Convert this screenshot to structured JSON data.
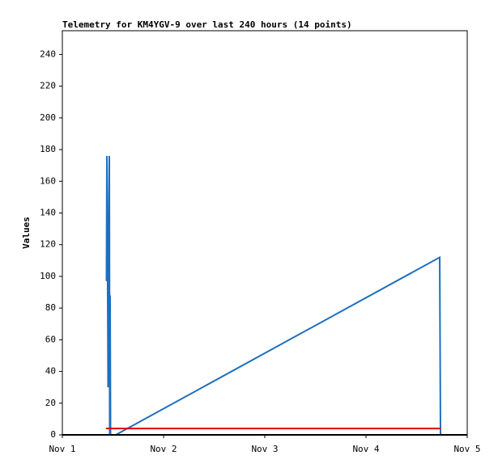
{
  "chart_data": {
    "type": "line",
    "title": "Telemetry for KM4YGV-9 over last 240 hours (14 points)",
    "ylabel": "Values",
    "series": [
      {
        "color": "#1f6fbf",
        "x": [
          0.436,
          0.44,
          0.444,
          0.448,
          0.452,
          0.456,
          0.464,
          0.468,
          0.472,
          0.476,
          0.528,
          3.728,
          3.736,
          3.74
        ],
        "values": [
          97,
          176,
          147,
          88,
          30,
          88,
          176,
          0,
          88,
          0,
          0,
          112,
          0,
          0
        ]
      },
      {
        "color": "#e00000",
        "x": [
          0.43,
          3.74
        ],
        "values": [
          4,
          4
        ]
      }
    ],
    "xlim": [
      0,
      4
    ],
    "xticks": [
      {
        "value": 0,
        "label": "Nov 1"
      },
      {
        "value": 1,
        "label": "Nov 2"
      },
      {
        "value": 2,
        "label": "Nov 3"
      },
      {
        "value": 3,
        "label": "Nov 4"
      },
      {
        "value": 4,
        "label": "Nov 5"
      }
    ],
    "ylim": [
      0,
      255
    ],
    "yticks": [
      0,
      20,
      40,
      60,
      80,
      100,
      120,
      140,
      160,
      180,
      200,
      220,
      240
    ],
    "grid": false
  }
}
